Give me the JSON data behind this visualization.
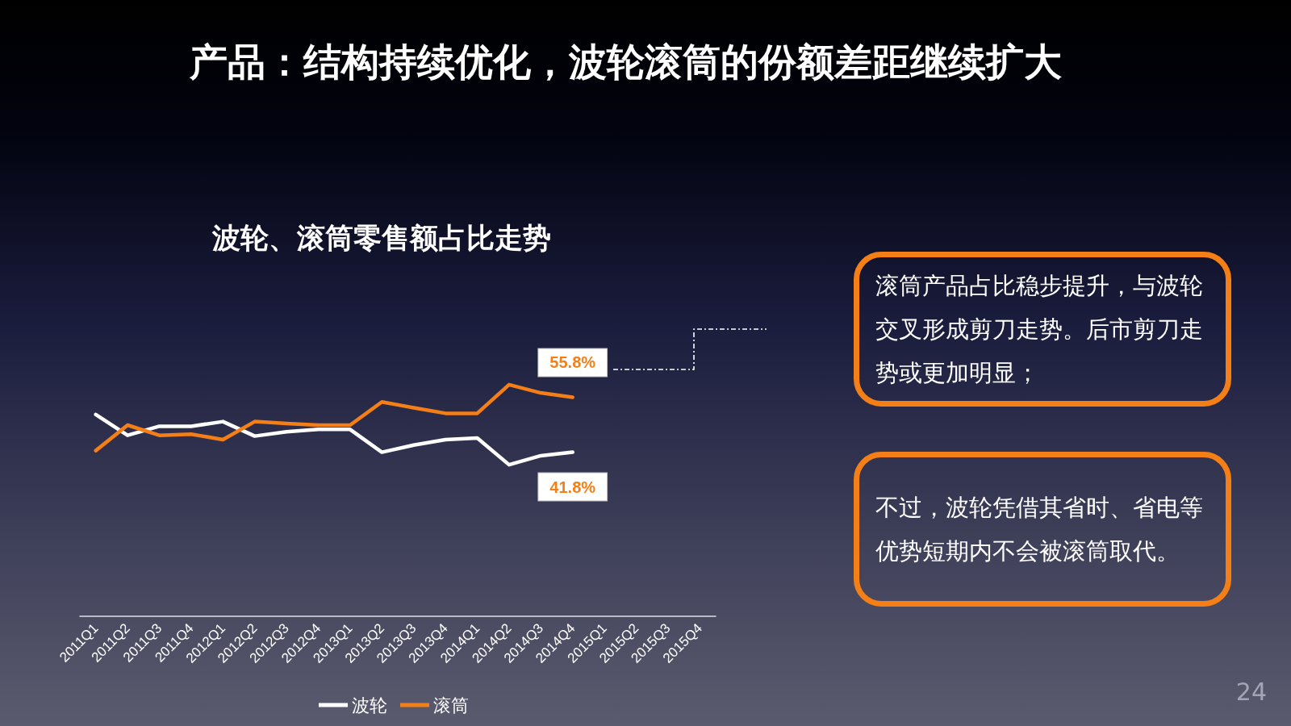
{
  "chart_data": {
    "type": "line",
    "title": "产品：结构持续优化，波轮滚筒的份额差距继续扩大",
    "subtitle": "波轮、滚筒零售额占比走势",
    "categories": [
      "2011Q1",
      "2011Q2",
      "2011Q3",
      "2011Q4",
      "2012Q1",
      "2012Q2",
      "2012Q3",
      "2012Q4",
      "2013Q1",
      "2013Q2",
      "2013Q3",
      "2013Q4",
      "2014Q1",
      "2014Q2",
      "2014Q3",
      "2014Q4",
      "2015Q1",
      "2015Q2",
      "2015Q3",
      "2015Q4"
    ],
    "series": [
      {
        "name": "波轮",
        "color": "#ffffff",
        "values": [
          51.4,
          46.1,
          48.4,
          48.4,
          49.6,
          45.9,
          47.0,
          47.6,
          47.6,
          41.8,
          43.6,
          45.0,
          45.4,
          38.6,
          40.9,
          41.8,
          null,
          null,
          null,
          null
        ],
        "value_labels": [
          null,
          null,
          null,
          null,
          null,
          null,
          null,
          null,
          null,
          null,
          null,
          null,
          null,
          null,
          null,
          "41.8%",
          null,
          null,
          null,
          null
        ]
      },
      {
        "name": "滚筒",
        "color": "#f57f17",
        "values": [
          42.2,
          48.7,
          46.1,
          46.4,
          45.0,
          49.6,
          49.1,
          48.7,
          48.7,
          54.6,
          53.1,
          51.7,
          51.7,
          59.0,
          56.9,
          55.8,
          null,
          null,
          null,
          null
        ],
        "value_labels": [
          null,
          null,
          null,
          null,
          null,
          null,
          null,
          null,
          null,
          null,
          null,
          null,
          null,
          null,
          null,
          "55.8%",
          null,
          null,
          null,
          null
        ]
      }
    ],
    "tick_labels": "x",
    "grid": false,
    "legend": "bottom",
    "marker": "none",
    "line_style": "solid",
    "annotations": [
      "滚筒产品占比稳步提升，与波轮交叉形成剪刀走势。后市剪刀走势或更加明显；",
      "不过，波轮凭借其省时、省电等优势短期内不会被滚筒取代。",
      "24"
    ]
  }
}
